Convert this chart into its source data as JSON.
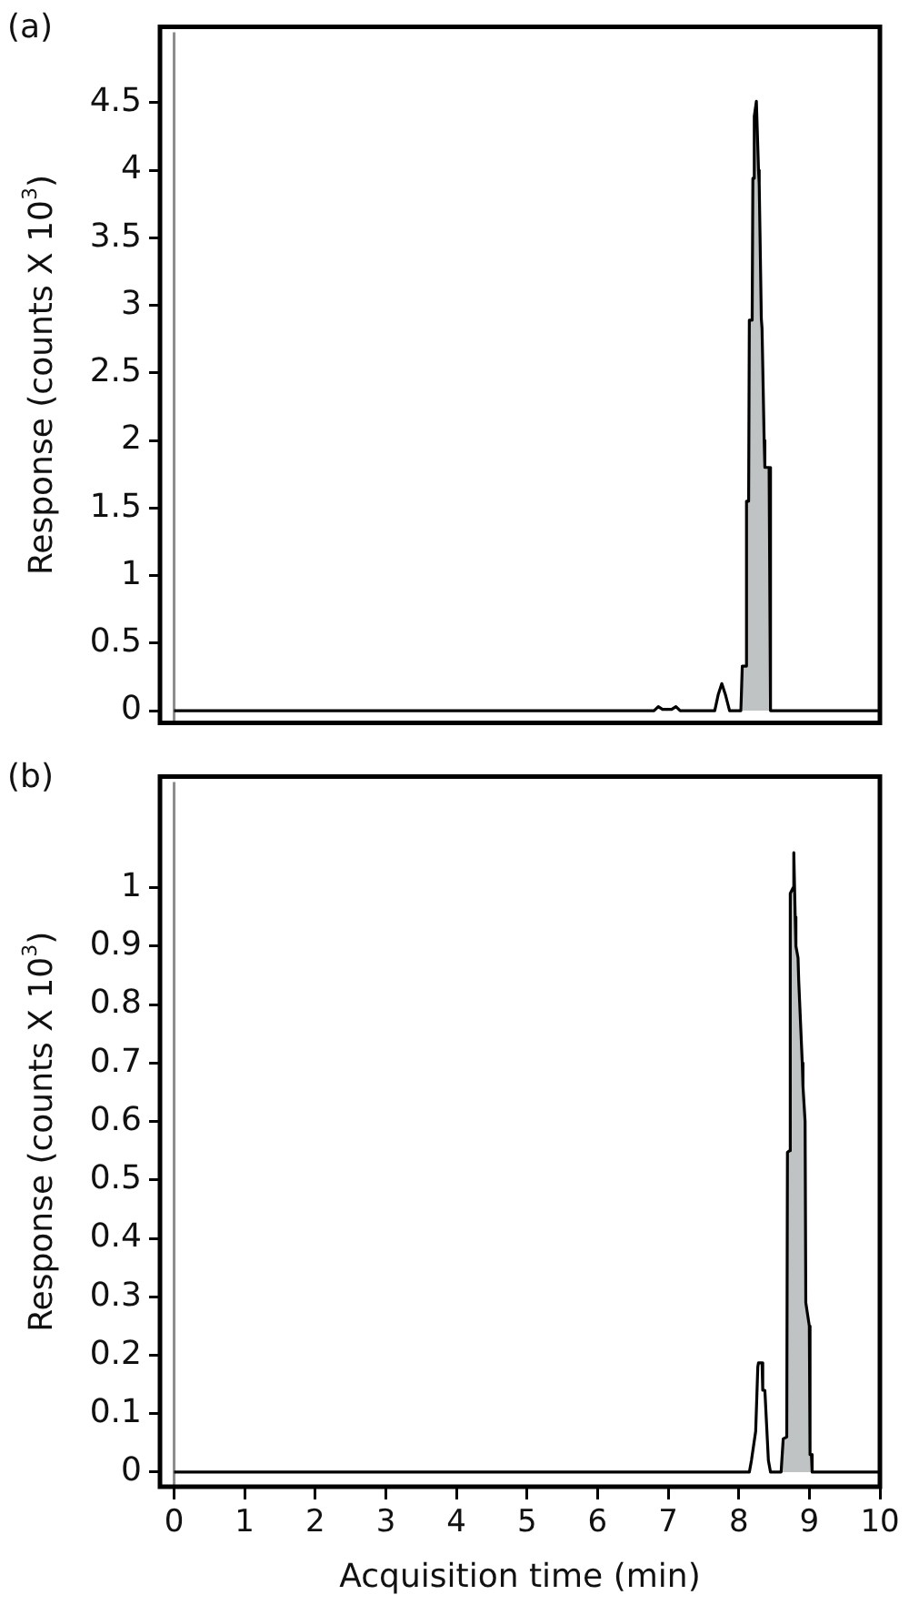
{
  "chart_data": [
    {
      "type": "line",
      "title": "(a)",
      "ylabel": "Response (counts X 10$^{3}$)",
      "xlim": [
        -0.2,
        10
      ],
      "ylim": [
        -0.09,
        5.06
      ],
      "yticks": [
        0,
        0.5,
        1,
        1.5,
        2,
        2.5,
        3,
        3.5,
        4,
        4.5
      ],
      "tick_labels": "y",
      "ref_lines": [
        {
          "axis": "x",
          "value": 0,
          "color": "#8c8c8c"
        }
      ],
      "series": [
        {
          "type": "area",
          "color": "#bfc3c3",
          "x": [
            8.05,
            8.1,
            8.11,
            8.14,
            8.15,
            8.19,
            8.2,
            8.22,
            8.25,
            8.28,
            8.29,
            8.32,
            8.33,
            8.36,
            8.37,
            8.43,
            8.45
          ],
          "values": [
            0.33,
            0.33,
            1.55,
            1.55,
            2.89,
            2.89,
            3.94,
            4.4,
            4.51,
            4.0,
            3.9,
            2.9,
            2.83,
            2.0,
            1.8,
            1.8,
            0
          ]
        },
        {
          "type": "line",
          "color": "#000000",
          "x": [
            0,
            6.8,
            6.86,
            6.92,
            7.05,
            7.11,
            7.17,
            7.66,
            7.71,
            7.76,
            7.81,
            7.87,
            8.03,
            8.05,
            8.1,
            8.11,
            8.14,
            8.15,
            8.19,
            8.2,
            8.22,
            8.25,
            8.28,
            8.29,
            8.32,
            8.33,
            8.36,
            8.37,
            8.43,
            8.45,
            10
          ],
          "values": [
            0,
            0,
            0.03,
            0.01,
            0.01,
            0.03,
            0,
            0,
            0.12,
            0.2,
            0.12,
            0,
            0,
            0.33,
            0.33,
            1.55,
            1.55,
            2.89,
            2.89,
            3.94,
            4.4,
            4.51,
            4.0,
            3.9,
            2.9,
            2.83,
            2.0,
            1.8,
            1.8,
            0,
            0
          ]
        }
      ]
    },
    {
      "type": "line",
      "title": "(b)",
      "ylabel": "Response (counts X 10$^{3}$)",
      "xlabel": "Acquisition time (min)",
      "xlim": [
        -0.2,
        10
      ],
      "xticks": [
        0,
        1,
        2,
        3,
        4,
        5,
        6,
        7,
        8,
        9,
        10
      ],
      "ylim": [
        -0.025,
        1.19
      ],
      "yticks": [
        0,
        0.1,
        0.2,
        0.3,
        0.4,
        0.5,
        0.6,
        0.7,
        0.8,
        0.9,
        1
      ],
      "ref_lines": [
        {
          "axis": "x",
          "value": 0,
          "color": "#8c8c8c"
        }
      ],
      "series": [
        {
          "type": "area",
          "color": "#bfc3c3",
          "x": [
            8.6,
            8.63,
            8.68,
            8.69,
            8.72,
            8.73,
            8.77,
            8.78,
            8.8,
            8.81,
            8.84,
            8.85,
            8.9,
            8.91,
            8.94,
            8.95,
            9.0,
            9.01,
            9.03,
            9.04
          ],
          "values": [
            0,
            0.057,
            0.06,
            0.547,
            0.55,
            0.99,
            1.0,
            1.06,
            0.95,
            0.9,
            0.88,
            0.84,
            0.7,
            0.66,
            0.6,
            0.29,
            0.25,
            0.03,
            0.03,
            0
          ]
        },
        {
          "type": "line",
          "color": "#000000",
          "x": [
            0,
            8.15,
            8.18,
            8.24,
            8.27,
            8.28,
            8.33,
            8.34,
            8.37,
            8.42,
            8.45,
            8.6,
            8.63,
            8.68,
            8.69,
            8.72,
            8.73,
            8.77,
            8.78,
            8.8,
            8.81,
            8.84,
            8.85,
            8.9,
            8.91,
            8.94,
            8.95,
            9.0,
            9.01,
            9.03,
            9.04,
            10
          ],
          "values": [
            0,
            0,
            0.02,
            0.07,
            0.18,
            0.187,
            0.187,
            0.14,
            0.14,
            0.02,
            0,
            0,
            0.057,
            0.06,
            0.547,
            0.55,
            0.99,
            1.0,
            1.06,
            0.95,
            0.9,
            0.88,
            0.84,
            0.7,
            0.66,
            0.6,
            0.29,
            0.25,
            0.03,
            0.03,
            0,
            0
          ]
        }
      ]
    }
  ]
}
